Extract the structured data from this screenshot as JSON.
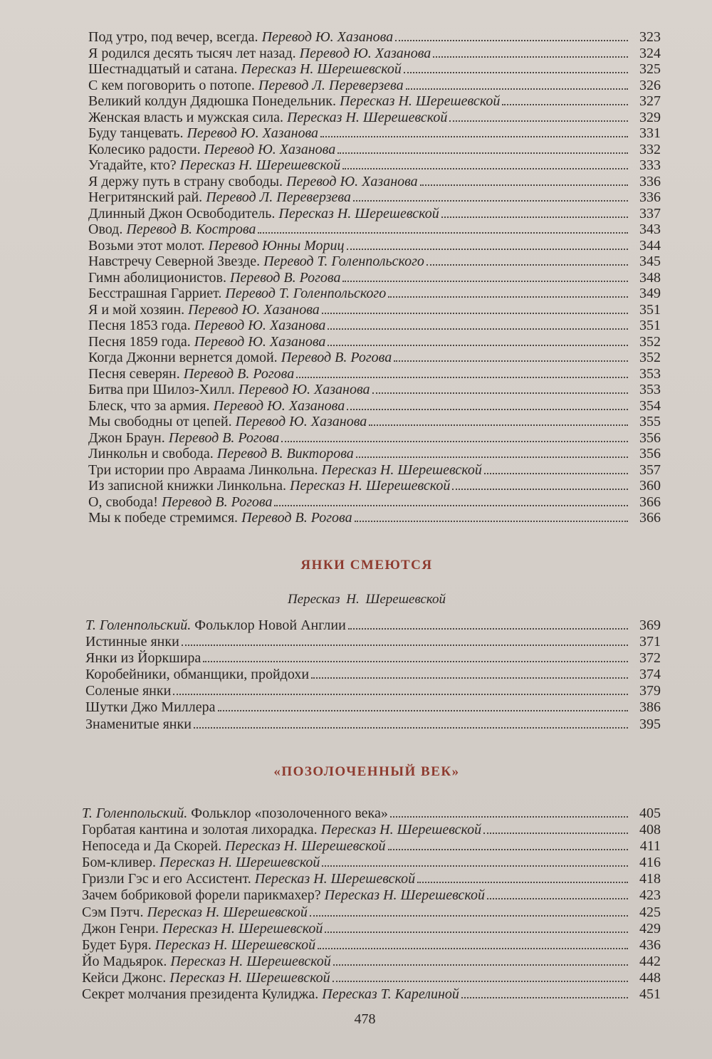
{
  "sections": [
    {
      "heading": "",
      "subtitle": "",
      "entries": [
        {
          "title": "Под утро, под вечер, всегда.",
          "credit": "Перевод Ю. Хазанова",
          "page": "323"
        },
        {
          "title": "Я родился десять тысяч лет назад.",
          "credit": "Перевод Ю. Хазанова",
          "page": "324"
        },
        {
          "title": "Шестнадцатый и сатана.",
          "credit": "Пересказ Н. Шерешевской",
          "page": "325"
        },
        {
          "title": "С кем поговорить о потопе.",
          "credit": "Перевод Л. Переверзева",
          "page": "326"
        },
        {
          "title": "Великий колдун Дядюшка Понедельник.",
          "credit": "Пересказ Н. Шерешевской",
          "page": "327"
        },
        {
          "title": "Женская власть и мужская сила.",
          "credit": "Пересказ Н. Шерешевской",
          "page": "329"
        },
        {
          "title": "Буду танцевать.",
          "credit": "Перевод Ю. Хазанова",
          "page": "331"
        },
        {
          "title": "Колесико радости.",
          "credit": "Перевод Ю. Хазанова",
          "page": "332"
        },
        {
          "title": "Угадайте, кто?",
          "credit": "Пересказ Н. Шерешевской",
          "page": "333"
        },
        {
          "title": "Я держу путь в страну свободы.",
          "credit": "Перевод Ю. Хазанова",
          "page": "336"
        },
        {
          "title": "Негритянский рай.",
          "credit": "Перевод Л. Переверзева",
          "page": "336"
        },
        {
          "title": "Длинный Джон Освободитель.",
          "credit": "Пересказ Н. Шерешевской",
          "page": "337"
        },
        {
          "title": "Овод.",
          "credit": "Перевод В. Кострова",
          "page": "343"
        },
        {
          "title": "Возьми этот молот.",
          "credit": "Перевод Юнны Мориц",
          "page": "344"
        },
        {
          "title": "Навстречу Северной Звезде.",
          "credit": "Перевод Т. Голенпольского",
          "page": "345"
        },
        {
          "title": "Гимн аболиционистов.",
          "credit": "Перевод В. Рогова",
          "page": "348"
        },
        {
          "title": "Бесстрашная Гарриет.",
          "credit": "Перевод Т. Голенпольского",
          "page": "349"
        },
        {
          "title": "Я и мой хозяин.",
          "credit": "Перевод Ю. Хазанова",
          "page": "351"
        },
        {
          "title": "Песня 1853 года.",
          "credit": "Перевод Ю. Хазанова",
          "page": "351"
        },
        {
          "title": "Песня 1859 года.",
          "credit": "Перевод Ю. Хазанова",
          "page": "352"
        },
        {
          "title": "Когда Джонни вернется домой.",
          "credit": "Перевод В. Рогова",
          "page": "352"
        },
        {
          "title": "Песня северян.",
          "credit": "Перевод В. Рогова",
          "page": "353"
        },
        {
          "title": "Битва при Шилоз-Хилл.",
          "credit": "Перевод Ю. Хазанова",
          "page": "353"
        },
        {
          "title": "Блеск, что за армия.",
          "credit": "Перевод Ю. Хазанова",
          "page": "354"
        },
        {
          "title": "Мы свободны от цепей.",
          "credit": "Перевод Ю. Хазанова",
          "page": "355"
        },
        {
          "title": "Джон Браун.",
          "credit": "Перевод В. Рогова",
          "page": "356"
        },
        {
          "title": "Линкольн и свобода.",
          "credit": "Перевод В. Викторова",
          "page": "356"
        },
        {
          "title": "Три истории про Авраама Линкольна.",
          "credit": "Пересказ Н. Шерешевской",
          "page": "357"
        },
        {
          "title": "Из записной книжки Линкольна.",
          "credit": "Пересказ Н. Шерешевской",
          "page": "360"
        },
        {
          "title": "О, свобода!",
          "credit": "Перевод В. Рогова",
          "page": "366"
        },
        {
          "title": "Мы к победе стремимся.",
          "credit": "Перевод В. Рогова",
          "page": "366"
        }
      ]
    },
    {
      "heading": "ЯНКИ СМЕЮТСЯ",
      "subtitle": "Пересказ Н. Шерешевской",
      "entries": [
        {
          "credit_first": true,
          "credit": "Т. Голенпольский.",
          "title": "Фольклор Новой Англии",
          "page": "369"
        },
        {
          "title": "Истинные янки",
          "credit": "",
          "page": "371"
        },
        {
          "title": "Янки из Йоркшира",
          "credit": "",
          "page": "372"
        },
        {
          "title": "Коробейники, обманщики, пройдохи",
          "credit": "",
          "page": "374"
        },
        {
          "title": "Соленые янки",
          "credit": "",
          "page": "379"
        },
        {
          "title": "Шутки Джо Миллера",
          "credit": "",
          "page": "386"
        },
        {
          "title": "Знаменитые янки",
          "credit": "",
          "page": "395"
        }
      ]
    },
    {
      "heading": "«ПОЗОЛОЧЕННЫЙ ВЕК»",
      "subtitle": "",
      "entries": [
        {
          "credit_first": true,
          "credit": "Т. Голенпольский.",
          "title": "Фольклор «позолоченного века»",
          "page": "405"
        },
        {
          "title": "Горбатая кантина и золотая лихорадка.",
          "credit": "Пересказ Н. Шерешевской",
          "page": "408"
        },
        {
          "title": "Непоседа и Да Скорей.",
          "credit": "Пересказ Н. Шерешевской",
          "page": "411"
        },
        {
          "title": "Бом-кливер.",
          "credit": "Пересказ Н. Шерешевской",
          "page": "416"
        },
        {
          "title": "Гризли Гэс и его Ассистент.",
          "credit": "Пересказ Н. Шерешевской",
          "page": "418"
        },
        {
          "title": "Зачем бобриковой форели парикмахер?",
          "credit": "Пересказ Н. Шерешевской",
          "page": "423"
        },
        {
          "title": "Сэм Пэтч.",
          "credit": "Пересказ Н. Шерешевской",
          "page": "425"
        },
        {
          "title": "Джон Генри.",
          "credit": "Пересказ Н. Шерешевской",
          "page": "429"
        },
        {
          "title": "Будет Буря.",
          "credit": "Пересказ Н. Шерешевской",
          "page": "436"
        },
        {
          "title": "Йо Мадьярок.",
          "credit": "Пересказ Н. Шерешевской",
          "page": "442"
        },
        {
          "title": "Кейси Джонс.",
          "credit": "Пересказ Н. Шерешевской",
          "page": "448"
        },
        {
          "title": "Секрет молчания президента Кулиджа.",
          "credit": "Пересказ Т. Карелиной",
          "page": "451"
        }
      ]
    }
  ],
  "page_number": "478",
  "colors": {
    "heading": "#8e3b2f",
    "paper": "#d6d0ca",
    "text": "#2a2624"
  }
}
